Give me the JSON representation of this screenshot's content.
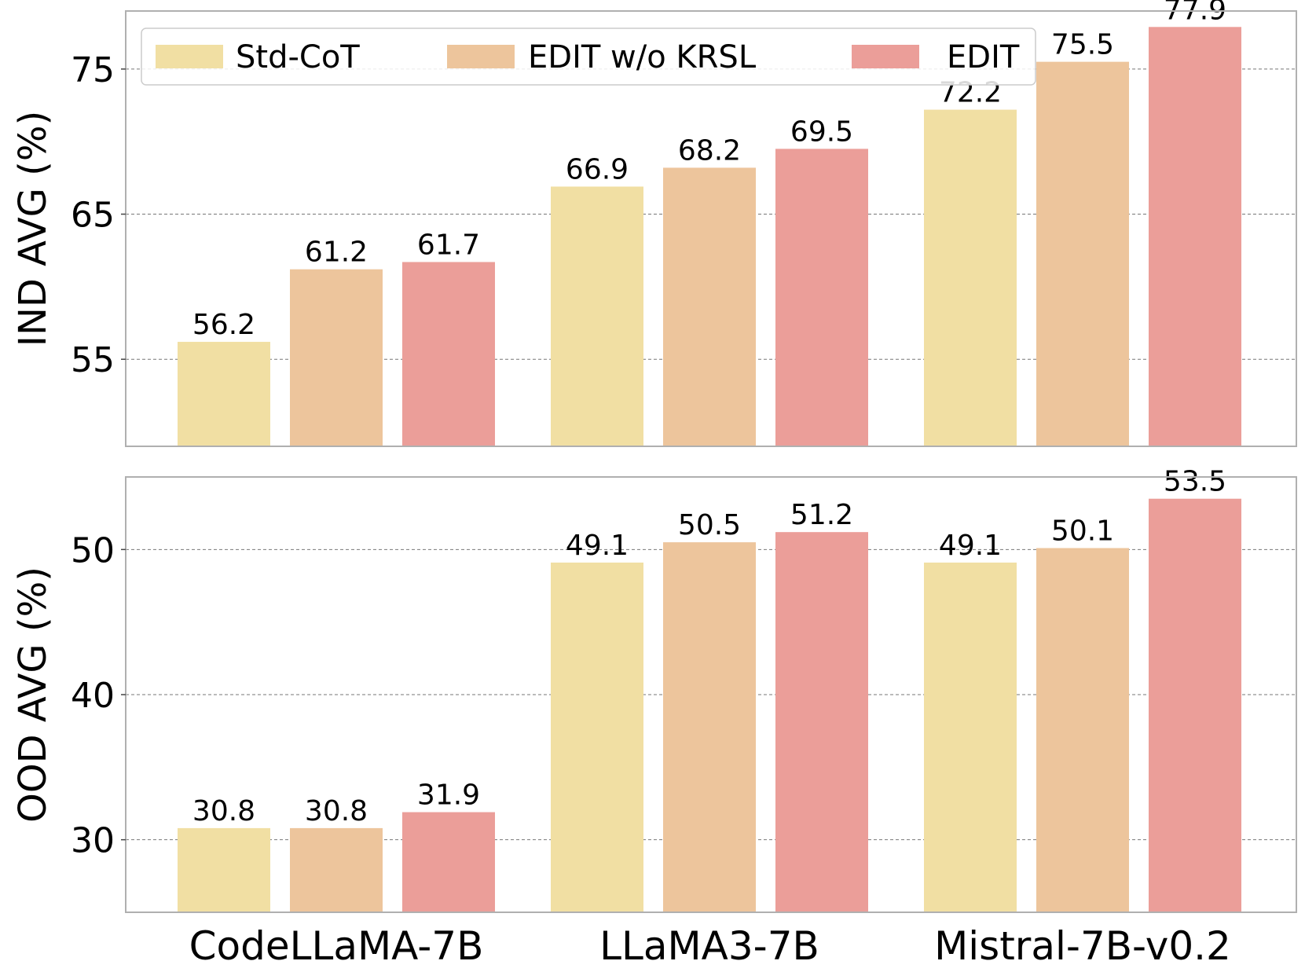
{
  "chart_data": [
    {
      "type": "bar",
      "ylabel": "IND AVG (%)",
      "ylim": [
        49,
        79
      ],
      "yticks": [
        55,
        65,
        75
      ],
      "grid": "y-dashed",
      "categories": [
        "CodeLLaMA-7B",
        "LLaMA3-7B",
        "Mistral-7B-v0.2"
      ],
      "series": [
        {
          "name": "Std-CoT",
          "values": [
            56.2,
            66.9,
            72.2
          ],
          "color": "#f1dfa3"
        },
        {
          "name": "EDIT w/o KRSL",
          "values": [
            61.2,
            68.2,
            75.5
          ],
          "color": "#edc59c"
        },
        {
          "name": "EDIT",
          "values": [
            61.7,
            69.5,
            77.9
          ],
          "color": "#eb9e99"
        }
      ],
      "legend": "top"
    },
    {
      "type": "bar",
      "ylabel": "OOD AVG (%)",
      "ylim": [
        25,
        55
      ],
      "yticks": [
        30,
        40,
        50
      ],
      "grid": "y-dashed",
      "categories": [
        "CodeLLaMA-7B",
        "LLaMA3-7B",
        "Mistral-7B-v0.2"
      ],
      "series": [
        {
          "name": "Std-CoT",
          "values": [
            30.8,
            49.1,
            49.1
          ],
          "color": "#f1dfa3"
        },
        {
          "name": "EDIT w/o KRSL",
          "values": [
            30.8,
            50.5,
            50.1
          ],
          "color": "#edc59c"
        },
        {
          "name": "EDIT",
          "values": [
            31.9,
            51.2,
            53.5
          ],
          "color": "#eb9e99"
        }
      ]
    }
  ]
}
